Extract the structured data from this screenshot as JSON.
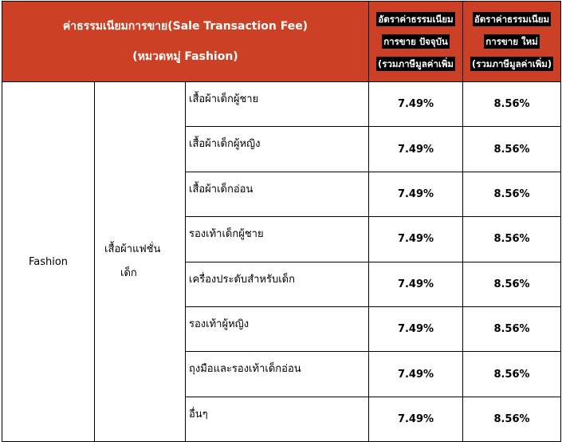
{
  "header": {
    "title_line1": "ค่าธรรมเนียมการขาย(Sale Transaction Fee)",
    "title_line2": "(หมวดหมู่ Fashion)",
    "current_rate": [
      "อัตราค่าธรรมเนียม",
      "การขาย ปัจจุบัน",
      "(รวมภาษีมูลค่าเพิ่ม"
    ],
    "new_rate": [
      "อัตราค่าธรรมเนียม",
      "การขาย ใหม่",
      "(รวมภาษีมูลค่าเพิ่ม)"
    ]
  },
  "header_color": "#cc4125",
  "category": "Fashion",
  "subcategory": "เสื้อผ้าแฟชั่น\nเด็ก",
  "subcategory_lines": [
    "เสื้อผ้าแฟชั่น",
    "เด็ก"
  ],
  "rows": [
    {
      "item": "เสื้อผ้าเด็กผู้ชาย",
      "current": "7.49%",
      "new": "8.56%"
    },
    {
      "item": "เสื้อผ้าเด็กผู้หญิง",
      "current": "7.49%",
      "new": "8.56%"
    },
    {
      "item": "เสื้อผ้าเด็กอ่อน",
      "current": "7.49%",
      "new": "8.56%"
    },
    {
      "item": "รองเท้าเด็กผู้ชาย",
      "current": "7.49%",
      "new": "8.56%"
    },
    {
      "item": "เครื่องประดับสำหรับเด็ก",
      "current": "7.49%",
      "new": "8.56%"
    },
    {
      "item": "รองเท้าผู้หญิง",
      "current": "7.49%",
      "new": "8.56%"
    },
    {
      "item": "ถุงมือและรองเท้าเด็กอ่อน",
      "current": "7.49%",
      "new": "8.56%"
    },
    {
      "item": "อื่นๆ",
      "current": "7.49%",
      "new": "8.56%"
    }
  ]
}
